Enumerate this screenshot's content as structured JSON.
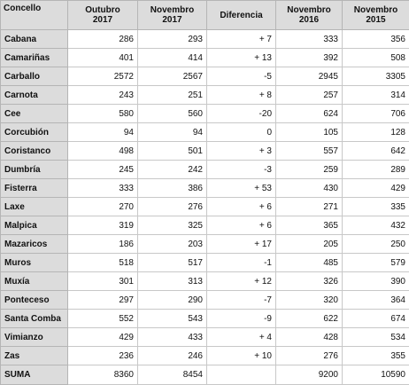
{
  "headers": [
    "Concello",
    "Outubro\n2017",
    "Novembro\n2017",
    "Diferencia",
    "Novembro\n2016",
    "Novembro\n2015"
  ],
  "rows": [
    [
      "Cabana",
      "286",
      "293",
      "+ 7",
      "333",
      "356"
    ],
    [
      "Camariñas",
      "401",
      "414",
      "+ 13",
      "392",
      "508"
    ],
    [
      "Carballo",
      "2572",
      "2567",
      "-5",
      "2945",
      "3305"
    ],
    [
      "Carnota",
      "243",
      "251",
      "+ 8",
      "257",
      "314"
    ],
    [
      "Cee",
      "580",
      "560",
      "-20",
      "624",
      "706"
    ],
    [
      "Corcubión",
      "94",
      "94",
      "0",
      "105",
      "128"
    ],
    [
      "Coristanco",
      "498",
      "501",
      "+ 3",
      "557",
      "642"
    ],
    [
      "Dumbría",
      "245",
      "242",
      "-3",
      "259",
      "289"
    ],
    [
      "Fisterra",
      "333",
      "386",
      "+ 53",
      "430",
      "429"
    ],
    [
      "Laxe",
      "270",
      "276",
      "+ 6",
      "271",
      "335"
    ],
    [
      "Malpica",
      "319",
      "325",
      "+ 6",
      "365",
      "432"
    ],
    [
      "Mazaricos",
      "186",
      "203",
      "+ 17",
      "205",
      "250"
    ],
    [
      "Muros",
      "518",
      "517",
      "-1",
      "485",
      "579"
    ],
    [
      "Muxía",
      "301",
      "313",
      "+ 12",
      "326",
      "390"
    ],
    [
      "Ponteceso",
      "297",
      "290",
      "-7",
      "320",
      "364"
    ],
    [
      "Santa Comba",
      "552",
      "543",
      "-9",
      "622",
      "674"
    ],
    [
      "Vimianzo",
      "429",
      "433",
      "+ 4",
      "428",
      "534"
    ],
    [
      "Zas",
      "236",
      "246",
      "+ 10",
      "276",
      "355"
    ],
    [
      "SUMA",
      "8360",
      "8454",
      "",
      "9200",
      "10590"
    ]
  ]
}
